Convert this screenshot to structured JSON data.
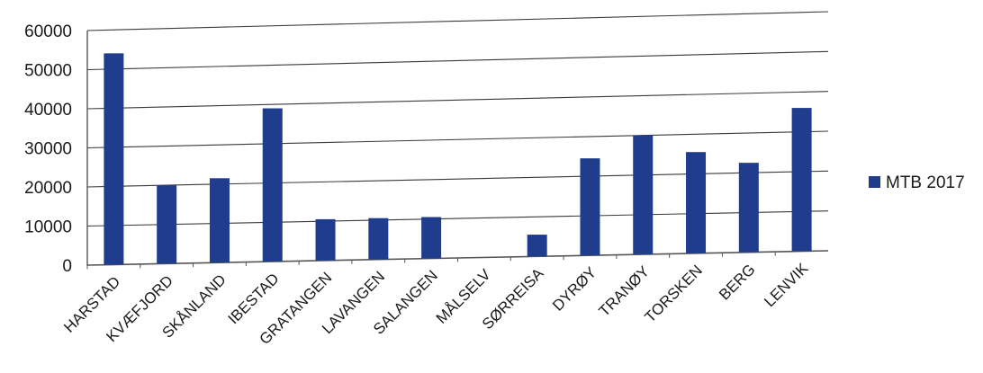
{
  "chart_data": {
    "type": "bar",
    "title": "",
    "xlabel": "",
    "ylabel": "",
    "categories": [
      "HARSTAD",
      "KVÆFJORD",
      "SKÅNLAND",
      "IBESTAD",
      "GRATANGEN",
      "LAVANGEN",
      "SALANGEN",
      "MÅLSELV",
      "SØRREISA",
      "DYRØY",
      "TRANØY",
      "TORSKEN",
      "BERG",
      "LENVIK"
    ],
    "series": [
      {
        "name": "MTB 2017",
        "color": "#1f3d8c",
        "values": [
          54000,
          20000,
          21500,
          39000,
          10500,
          10500,
          10500,
          0,
          5500,
          24500,
          30000,
          25500,
          22500,
          36000
        ]
      }
    ],
    "ylim": [
      0,
      60000
    ],
    "yticks": [
      "0",
      "10000",
      "20000",
      "30000",
      "40000",
      "50000",
      "60000"
    ],
    "grid": true,
    "legend": "right"
  }
}
